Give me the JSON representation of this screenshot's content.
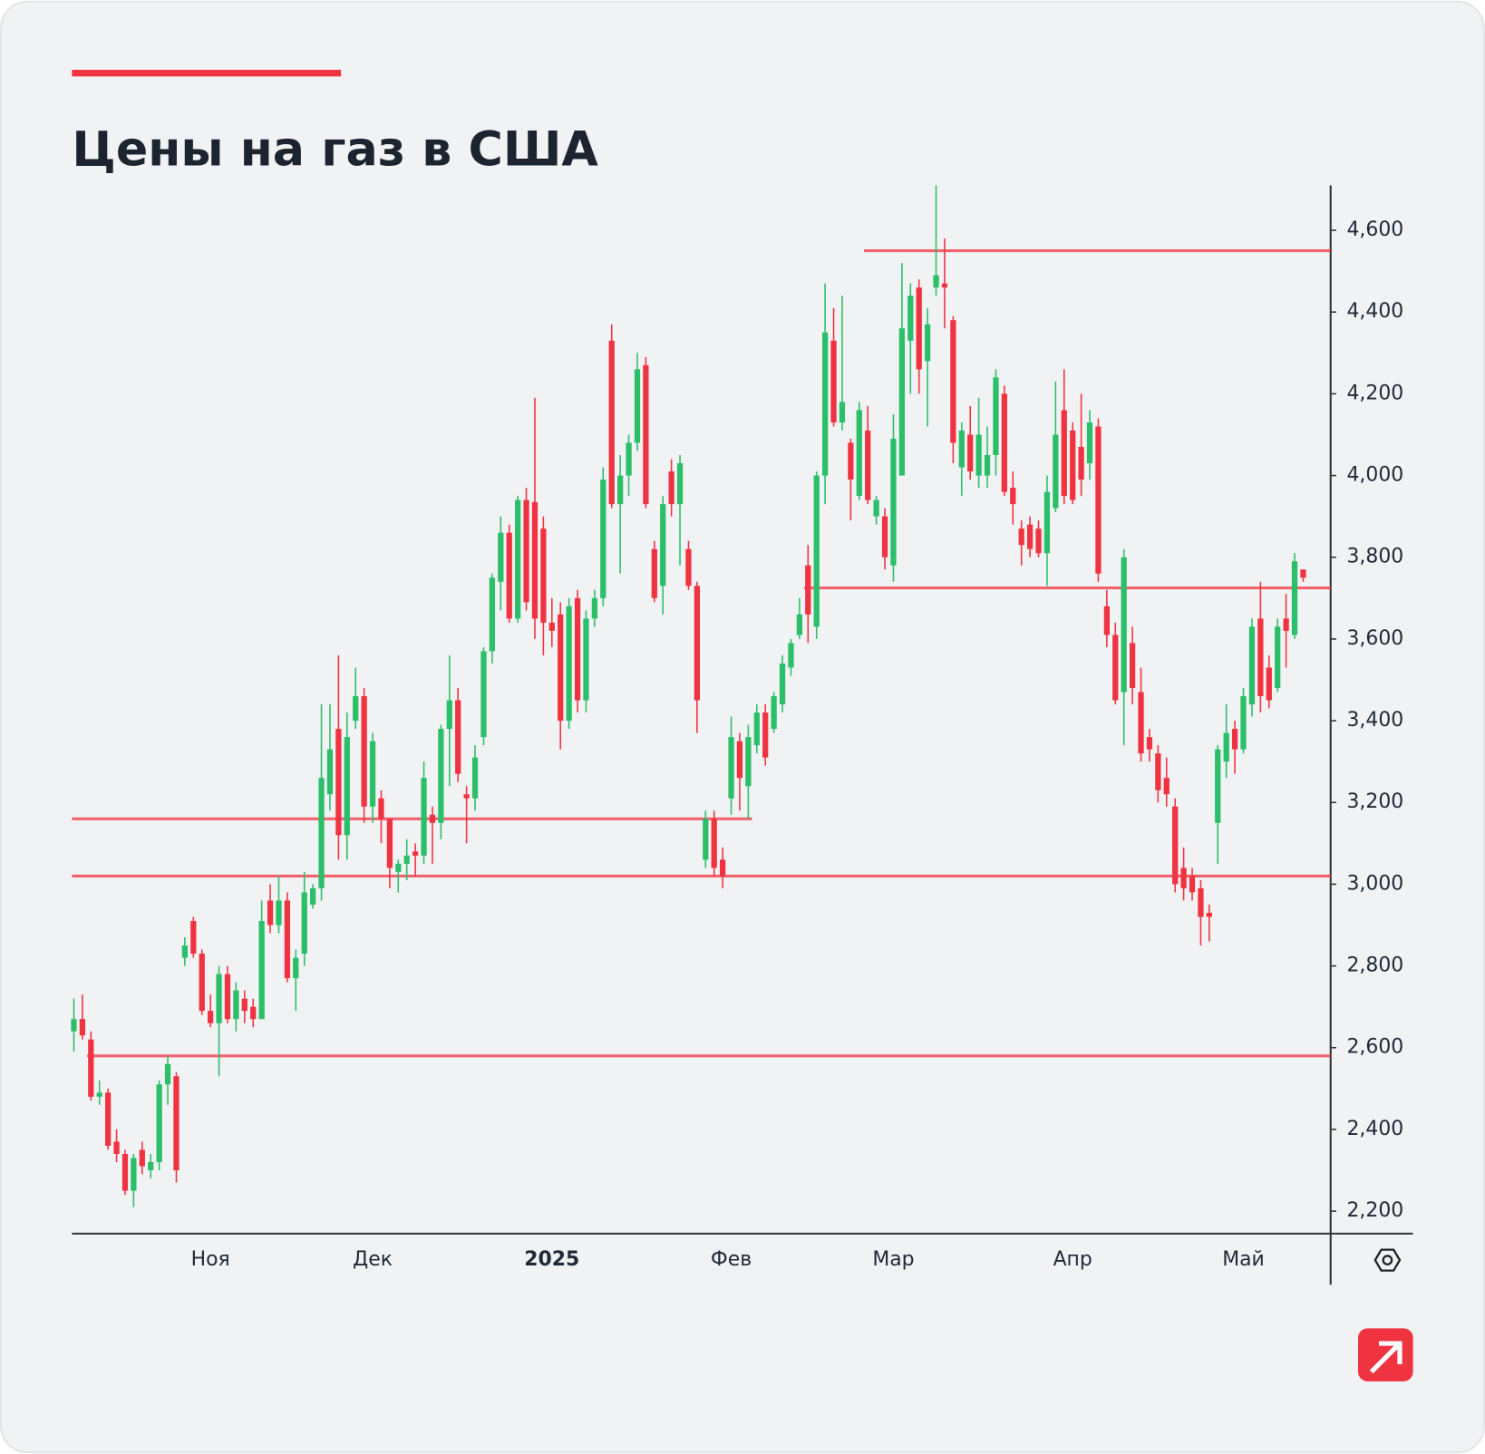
{
  "chart_data": {
    "type": "candlestick",
    "title": "Цены на газ в США",
    "categories": [
      null,
      null,
      null,
      null,
      null,
      null,
      null,
      null,
      null,
      null,
      null,
      null,
      null,
      null,
      null,
      null,
      "Ноя",
      null,
      null,
      null,
      null,
      null,
      null,
      null,
      null,
      null,
      null,
      null,
      null,
      null,
      null,
      null,
      null,
      null,
      null,
      "Дек",
      null,
      null,
      null,
      null,
      null,
      null,
      null,
      null,
      null,
      null,
      null,
      null,
      null,
      null,
      null,
      null,
      null,
      null,
      null,
      null,
      "2025",
      null,
      null,
      null,
      null,
      null,
      null,
      null,
      null,
      null,
      null,
      null,
      null,
      null,
      null,
      null,
      null,
      null,
      null,
      null,
      null,
      "Фев",
      null,
      null,
      null,
      null,
      null,
      null,
      null,
      null,
      null,
      null,
      null,
      null,
      null,
      null,
      null,
      null,
      null,
      null,
      "Мар",
      null,
      null,
      null,
      null,
      null,
      null,
      null,
      null,
      null,
      null,
      null,
      null,
      null,
      null,
      null,
      null,
      null,
      null,
      null,
      null,
      "Апр",
      null,
      null,
      null,
      null,
      null,
      null,
      null,
      null,
      null,
      null,
      null,
      null,
      null,
      null,
      null,
      null,
      null,
      null,
      null,
      "Май",
      null,
      null,
      null,
      null,
      null,
      null,
      null
    ],
    "ohlc": [
      [
        2640,
        2720,
        2590,
        2670
      ],
      [
        2670,
        2730,
        2620,
        2630
      ],
      [
        2620,
        2640,
        2470,
        2480
      ],
      [
        2480,
        2520,
        2460,
        2490
      ],
      [
        2490,
        2500,
        2350,
        2360
      ],
      [
        2370,
        2400,
        2320,
        2340
      ],
      [
        2340,
        2350,
        2240,
        2250
      ],
      [
        2250,
        2340,
        2210,
        2330
      ],
      [
        2350,
        2370,
        2290,
        2310
      ],
      [
        2300,
        2340,
        2280,
        2320
      ],
      [
        2320,
        2520,
        2300,
        2510
      ],
      [
        2510,
        2580,
        2460,
        2560
      ],
      [
        2530,
        2540,
        2270,
        2300
      ],
      [
        2820,
        2870,
        2800,
        2850
      ],
      [
        2910,
        2920,
        2820,
        2830
      ],
      [
        2830,
        2840,
        2680,
        2690
      ],
      [
        2690,
        2730,
        2650,
        2660
      ],
      [
        2660,
        2800,
        2530,
        2780
      ],
      [
        2780,
        2800,
        2660,
        2670
      ],
      [
        2670,
        2760,
        2640,
        2740
      ],
      [
        2720,
        2740,
        2660,
        2690
      ],
      [
        2700,
        2720,
        2650,
        2670
      ],
      [
        2670,
        2960,
        2670,
        2910
      ],
      [
        2960,
        3000,
        2880,
        2900
      ],
      [
        2900,
        3020,
        2880,
        2960
      ],
      [
        2960,
        2980,
        2760,
        2770
      ],
      [
        2770,
        2840,
        2690,
        2820
      ],
      [
        2830,
        3030,
        2800,
        2980
      ],
      [
        2950,
        3000,
        2940,
        2990
      ],
      [
        2990,
        3440,
        2960,
        3260
      ],
      [
        3220,
        3440,
        3180,
        3330
      ],
      [
        3380,
        3560,
        3060,
        3120
      ],
      [
        3120,
        3420,
        3060,
        3360
      ],
      [
        3400,
        3530,
        3380,
        3460
      ],
      [
        3460,
        3480,
        3150,
        3190
      ],
      [
        3190,
        3370,
        3150,
        3350
      ],
      [
        3210,
        3230,
        3100,
        3160
      ],
      [
        3160,
        3160,
        2990,
        3040
      ],
      [
        3030,
        3060,
        2980,
        3050
      ],
      [
        3050,
        3110,
        3010,
        3070
      ],
      [
        3080,
        3100,
        3020,
        3070
      ],
      [
        3070,
        3300,
        3050,
        3260
      ],
      [
        3170,
        3190,
        3050,
        3150
      ],
      [
        3150,
        3390,
        3110,
        3380
      ],
      [
        3380,
        3560,
        3240,
        3450
      ],
      [
        3450,
        3480,
        3250,
        3270
      ],
      [
        3220,
        3240,
        3100,
        3210
      ],
      [
        3210,
        3340,
        3180,
        3310
      ],
      [
        3360,
        3580,
        3340,
        3570
      ],
      [
        3570,
        3760,
        3540,
        3750
      ],
      [
        3740,
        3900,
        3670,
        3860
      ],
      [
        3860,
        3880,
        3640,
        3650
      ],
      [
        3650,
        3950,
        3640,
        3940
      ],
      [
        3940,
        3970,
        3670,
        3690
      ],
      [
        3935,
        4190,
        3600,
        3650
      ],
      [
        3870,
        3900,
        3560,
        3640
      ],
      [
        3640,
        3700,
        3580,
        3620
      ],
      [
        3660,
        3690,
        3330,
        3400
      ],
      [
        3400,
        3700,
        3380,
        3680
      ],
      [
        3700,
        3720,
        3420,
        3450
      ],
      [
        3450,
        3670,
        3420,
        3650
      ],
      [
        3650,
        3720,
        3630,
        3700
      ],
      [
        3700,
        4020,
        3680,
        3990
      ],
      [
        4330,
        4370,
        3920,
        3930
      ],
      [
        3930,
        4050,
        3760,
        4000
      ],
      [
        4000,
        4100,
        3950,
        4080
      ],
      [
        4080,
        4300,
        4060,
        4260
      ],
      [
        4270,
        4290,
        3920,
        3930
      ],
      [
        3820,
        3840,
        3690,
        3700
      ],
      [
        3730,
        3950,
        3660,
        3930
      ],
      [
        4010,
        4040,
        3900,
        3930
      ],
      [
        3930,
        4050,
        3780,
        4030
      ],
      [
        3820,
        3840,
        3720,
        3730
      ],
      [
        3730,
        3740,
        3370,
        3450
      ],
      [
        3060,
        3180,
        3040,
        3160
      ],
      [
        3160,
        3180,
        3020,
        3040
      ],
      [
        3060,
        3090,
        2990,
        3020
      ],
      [
        3210,
        3410,
        3170,
        3360
      ],
      [
        3350,
        3370,
        3180,
        3260
      ],
      [
        3240,
        3390,
        3160,
        3360
      ],
      [
        3340,
        3440,
        3320,
        3420
      ],
      [
        3420,
        3440,
        3290,
        3310
      ],
      [
        3380,
        3470,
        3370,
        3460
      ],
      [
        3440,
        3560,
        3420,
        3540
      ],
      [
        3530,
        3600,
        3510,
        3590
      ],
      [
        3610,
        3700,
        3600,
        3660
      ],
      [
        3780,
        3830,
        3590,
        3660
      ],
      [
        3630,
        4010,
        3600,
        4000
      ],
      [
        4000,
        4470,
        3930,
        4350
      ],
      [
        4330,
        4410,
        4120,
        4130
      ],
      [
        4130,
        4440,
        4110,
        4180
      ],
      [
        4080,
        4090,
        3890,
        3990
      ],
      [
        3950,
        4180,
        3940,
        4160
      ],
      [
        4110,
        4170,
        3930,
        3940
      ],
      [
        3900,
        3950,
        3880,
        3940
      ],
      [
        3900,
        3920,
        3770,
        3800
      ],
      [
        3780,
        4150,
        3740,
        4090
      ],
      [
        4000,
        4520,
        4000,
        4360
      ],
      [
        4330,
        4470,
        4200,
        4440
      ],
      [
        4460,
        4480,
        4200,
        4260
      ],
      [
        4280,
        4410,
        4120,
        4370
      ],
      [
        4460,
        4710,
        4440,
        4490
      ],
      [
        4470,
        4580,
        4360,
        4460
      ],
      [
        4380,
        4390,
        4030,
        4080
      ],
      [
        4020,
        4130,
        3950,
        4110
      ],
      [
        4100,
        4170,
        3990,
        4010
      ],
      [
        4000,
        4190,
        3970,
        4100
      ],
      [
        4000,
        4120,
        3970,
        4050
      ],
      [
        4050,
        4260,
        4000,
        4240
      ],
      [
        4200,
        4220,
        3950,
        3960
      ],
      [
        3970,
        4010,
        3880,
        3930
      ],
      [
        3870,
        3890,
        3780,
        3830
      ],
      [
        3880,
        3900,
        3800,
        3820
      ],
      [
        3870,
        3890,
        3800,
        3810
      ],
      [
        3810,
        4000,
        3730,
        3960
      ],
      [
        3920,
        4230,
        3910,
        4100
      ],
      [
        4160,
        4260,
        3930,
        3950
      ],
      [
        4110,
        4130,
        3930,
        3940
      ],
      [
        4070,
        4200,
        3950,
        3990
      ],
      [
        4030,
        4160,
        3990,
        4130
      ],
      [
        4120,
        4140,
        3740,
        3760
      ],
      [
        3680,
        3720,
        3580,
        3610
      ],
      [
        3610,
        3640,
        3440,
        3450
      ],
      [
        3470,
        3820,
        3340,
        3800
      ],
      [
        3590,
        3630,
        3440,
        3480
      ],
      [
        3470,
        3530,
        3300,
        3320
      ],
      [
        3360,
        3380,
        3300,
        3330
      ],
      [
        3320,
        3340,
        3200,
        3230
      ],
      [
        3260,
        3310,
        3190,
        3220
      ],
      [
        3190,
        3210,
        2980,
        3000
      ],
      [
        3040,
        3090,
        2960,
        2990
      ],
      [
        3020,
        3040,
        2960,
        2980
      ],
      [
        2990,
        3010,
        2850,
        2920
      ],
      [
        2930,
        2950,
        2860,
        2920
      ],
      [
        3150,
        3340,
        3050,
        3330
      ],
      [
        3300,
        3440,
        3260,
        3370
      ],
      [
        3380,
        3400,
        3270,
        3330
      ],
      [
        3330,
        3480,
        3320,
        3460
      ],
      [
        3440,
        3650,
        3410,
        3630
      ],
      [
        3650,
        3740,
        3420,
        3460
      ],
      [
        3530,
        3560,
        3430,
        3450
      ],
      [
        3480,
        3650,
        3470,
        3630
      ],
      [
        3650,
        3710,
        3530,
        3620
      ],
      [
        3610,
        3810,
        3600,
        3790
      ],
      [
        3770,
        3770,
        3740,
        3750
      ]
    ],
    "up_color": "#2bbf6a",
    "down_color": "#ef3340",
    "levels": [
      {
        "value": 4550,
        "start": 93
      },
      {
        "value": 3725,
        "start": 86
      },
      {
        "value": 3160,
        "start": 0,
        "end": 79
      },
      {
        "value": 3020,
        "start": 0
      },
      {
        "value": 2580,
        "start": 2
      }
    ],
    "level_color": "#ef3340",
    "ylim": [
      2145,
      4710
    ],
    "yticks": [
      {
        "value": 2200,
        "label": "2,200"
      },
      {
        "value": 2400,
        "label": "2,400"
      },
      {
        "value": 2600,
        "label": "2,600"
      },
      {
        "value": 2800,
        "label": "2,800"
      },
      {
        "value": 3000,
        "label": "3,000"
      },
      {
        "value": 3200,
        "label": "3,200"
      },
      {
        "value": 3400,
        "label": "3,400"
      },
      {
        "value": 3600,
        "label": "3,600"
      },
      {
        "value": 3800,
        "label": "3,800"
      },
      {
        "value": 4000,
        "label": "4,000"
      },
      {
        "value": 4200,
        "label": "4,200"
      },
      {
        "value": 4400,
        "label": "4,400"
      },
      {
        "value": 4600,
        "label": "4,600"
      }
    ]
  }
}
